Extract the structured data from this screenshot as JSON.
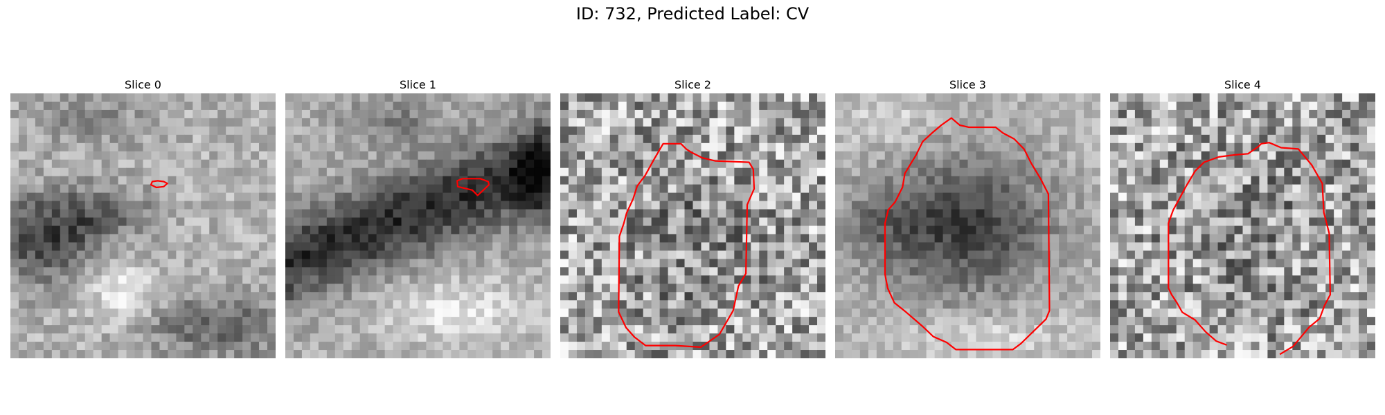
{
  "figure": {
    "title": "ID: 732, Predicted Label: CV"
  },
  "panels": [
    {
      "title": "Slice 0",
      "seed": 11,
      "style": "s0",
      "contour": "contour-0",
      "contour_points": [
        [
          0.535,
          0.333
        ],
        [
          0.555,
          0.33
        ],
        [
          0.578,
          0.333
        ],
        [
          0.592,
          0.34
        ],
        [
          0.578,
          0.352
        ],
        [
          0.55,
          0.355
        ],
        [
          0.53,
          0.345
        ]
      ]
    },
    {
      "title": "Slice 1",
      "seed": 23,
      "style": "s1",
      "contour": "contour-1",
      "contour_points": [
        [
          0.648,
          0.33
        ],
        [
          0.668,
          0.322
        ],
        [
          0.735,
          0.322
        ],
        [
          0.765,
          0.333
        ],
        [
          0.768,
          0.345
        ],
        [
          0.752,
          0.36
        ],
        [
          0.725,
          0.385
        ],
        [
          0.705,
          0.365
        ],
        [
          0.65,
          0.352
        ]
      ]
    },
    {
      "title": "Slice 2",
      "seed": 37,
      "style": "s2",
      "contour": "contour-2",
      "contour_points": [
        [
          0.388,
          0.19
        ],
        [
          0.455,
          0.19
        ],
        [
          0.475,
          0.21
        ],
        [
          0.495,
          0.223
        ],
        [
          0.535,
          0.243
        ],
        [
          0.585,
          0.255
        ],
        [
          0.712,
          0.26
        ],
        [
          0.728,
          0.287
        ],
        [
          0.731,
          0.36
        ],
        [
          0.705,
          0.42
        ],
        [
          0.7,
          0.68
        ],
        [
          0.672,
          0.727
        ],
        [
          0.652,
          0.82
        ],
        [
          0.6,
          0.91
        ],
        [
          0.53,
          0.958
        ],
        [
          0.433,
          0.952
        ],
        [
          0.322,
          0.952
        ],
        [
          0.28,
          0.92
        ],
        [
          0.248,
          0.884
        ],
        [
          0.22,
          0.825
        ],
        [
          0.223,
          0.54
        ],
        [
          0.24,
          0.49
        ],
        [
          0.25,
          0.452
        ],
        [
          0.275,
          0.398
        ],
        [
          0.29,
          0.35
        ],
        [
          0.32,
          0.31
        ],
        [
          0.353,
          0.25
        ]
      ]
    },
    {
      "title": "Slice 3",
      "seed": 53,
      "style": "s3",
      "contour": "contour-3",
      "contour_points": [
        [
          0.438,
          0.093
        ],
        [
          0.47,
          0.12
        ],
        [
          0.504,
          0.128
        ],
        [
          0.605,
          0.128
        ],
        [
          0.633,
          0.15
        ],
        [
          0.675,
          0.172
        ],
        [
          0.712,
          0.21
        ],
        [
          0.74,
          0.265
        ],
        [
          0.775,
          0.323
        ],
        [
          0.804,
          0.38
        ],
        [
          0.808,
          0.82
        ],
        [
          0.795,
          0.852
        ],
        [
          0.7,
          0.945
        ],
        [
          0.67,
          0.967
        ],
        [
          0.455,
          0.967
        ],
        [
          0.42,
          0.94
        ],
        [
          0.37,
          0.918
        ],
        [
          0.33,
          0.88
        ],
        [
          0.268,
          0.826
        ],
        [
          0.223,
          0.79
        ],
        [
          0.198,
          0.735
        ],
        [
          0.188,
          0.683
        ],
        [
          0.188,
          0.49
        ],
        [
          0.2,
          0.44
        ],
        [
          0.226,
          0.41
        ],
        [
          0.254,
          0.354
        ],
        [
          0.263,
          0.302
        ],
        [
          0.305,
          0.233
        ],
        [
          0.33,
          0.182
        ],
        [
          0.365,
          0.15
        ],
        [
          0.4,
          0.12
        ]
      ]
    },
    {
      "title": "Slice 4",
      "seed": 71,
      "style": "s4",
      "contour": "contour-4",
      "contour_points": [
        [
          0.44,
          0.95
        ],
        [
          0.4,
          0.935
        ],
        [
          0.36,
          0.9
        ],
        [
          0.32,
          0.855
        ],
        [
          0.272,
          0.826
        ],
        [
          0.252,
          0.79
        ],
        [
          0.232,
          0.76
        ],
        [
          0.22,
          0.735
        ],
        [
          0.22,
          0.49
        ],
        [
          0.238,
          0.44
        ],
        [
          0.26,
          0.4
        ],
        [
          0.287,
          0.35
        ],
        [
          0.321,
          0.293
        ],
        [
          0.354,
          0.26
        ],
        [
          0.41,
          0.24
        ],
        [
          0.47,
          0.232
        ],
        [
          0.52,
          0.228
        ],
        [
          0.56,
          0.2
        ],
        [
          0.57,
          0.19
        ],
        [
          0.6,
          0.186
        ],
        [
          0.645,
          0.205
        ],
        [
          0.71,
          0.21
        ],
        [
          0.76,
          0.27
        ],
        [
          0.8,
          0.34
        ],
        [
          0.806,
          0.45
        ],
        [
          0.826,
          0.528
        ],
        [
          0.83,
          0.76
        ],
        [
          0.809,
          0.8
        ],
        [
          0.79,
          0.85
        ],
        [
          0.75,
          0.883
        ],
        [
          0.69,
          0.955
        ],
        [
          0.64,
          0.985
        ]
      ]
    }
  ],
  "colors": {
    "contour": "#ff0000"
  }
}
